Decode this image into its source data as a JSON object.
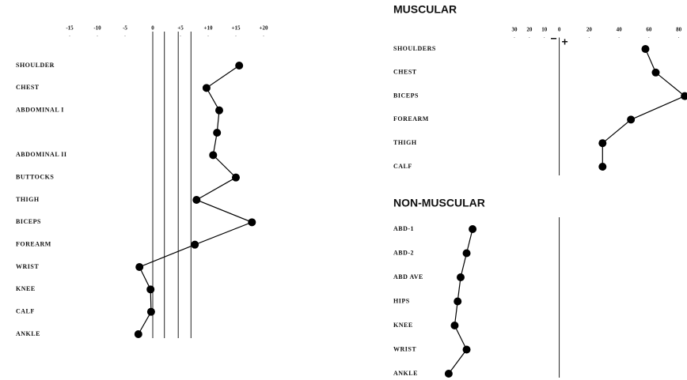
{
  "chart_data": [
    {
      "type": "line",
      "orientation": "horizontal",
      "color": "#000000",
      "categories": [
        "SHOULDER",
        "CHEST",
        "ABDOMINAL I",
        null,
        "ABDOMINAL II",
        "BUTTOCKS",
        "THIGH",
        "BICEPS",
        "FOREARM",
        "WRIST",
        "KNEE",
        "CALF",
        "ANKLE"
      ],
      "values": [
        15.6,
        9.7,
        12,
        11.6,
        10.9,
        15,
        7.9,
        17.9,
        7.6,
        -2.4,
        -0.4,
        -0.3,
        -2.6
      ],
      "reference_lines": [
        2.1,
        4.6,
        6.9
      ],
      "xlim": [
        -20,
        25
      ],
      "xticks": [
        -15,
        -10,
        -5,
        0,
        {
          "value": 5,
          "label": "+5"
        },
        {
          "value": 10,
          "label": "+10"
        },
        {
          "value": 15,
          "label": "+15"
        },
        {
          "value": 20,
          "label": "+20"
        }
      ]
    },
    {
      "type": "line",
      "orientation": "horizontal",
      "color": "#000000",
      "title": "MUSCULAR",
      "categories": [
        "SHOULDERS",
        "CHEST",
        "BICEPS",
        "FOREARM",
        "THIGH",
        "CALF"
      ],
      "values": [
        57.7,
        64.6,
        84,
        48,
        29,
        29
      ],
      "xlim": [
        -75,
        85
      ],
      "xticks": [
        {
          "value": -30,
          "label": "30"
        },
        {
          "value": -20,
          "label": "20"
        },
        {
          "value": -10,
          "label": "10"
        },
        0,
        20,
        40,
        60,
        80
      ],
      "minus_label": "−",
      "plus_label": "+"
    },
    {
      "type": "line",
      "orientation": "horizontal",
      "color": "#000000",
      "title": "NON-MUSCULAR",
      "categories": [
        "ABD-1",
        "ABD-2",
        "ABD AVE",
        "HIPS",
        "KNEE",
        "WRIST",
        "ANKLE"
      ],
      "values": [
        -58,
        -62,
        -66,
        -68,
        -70,
        -62,
        -74
      ],
      "xlim": [
        -75,
        85
      ]
    }
  ]
}
